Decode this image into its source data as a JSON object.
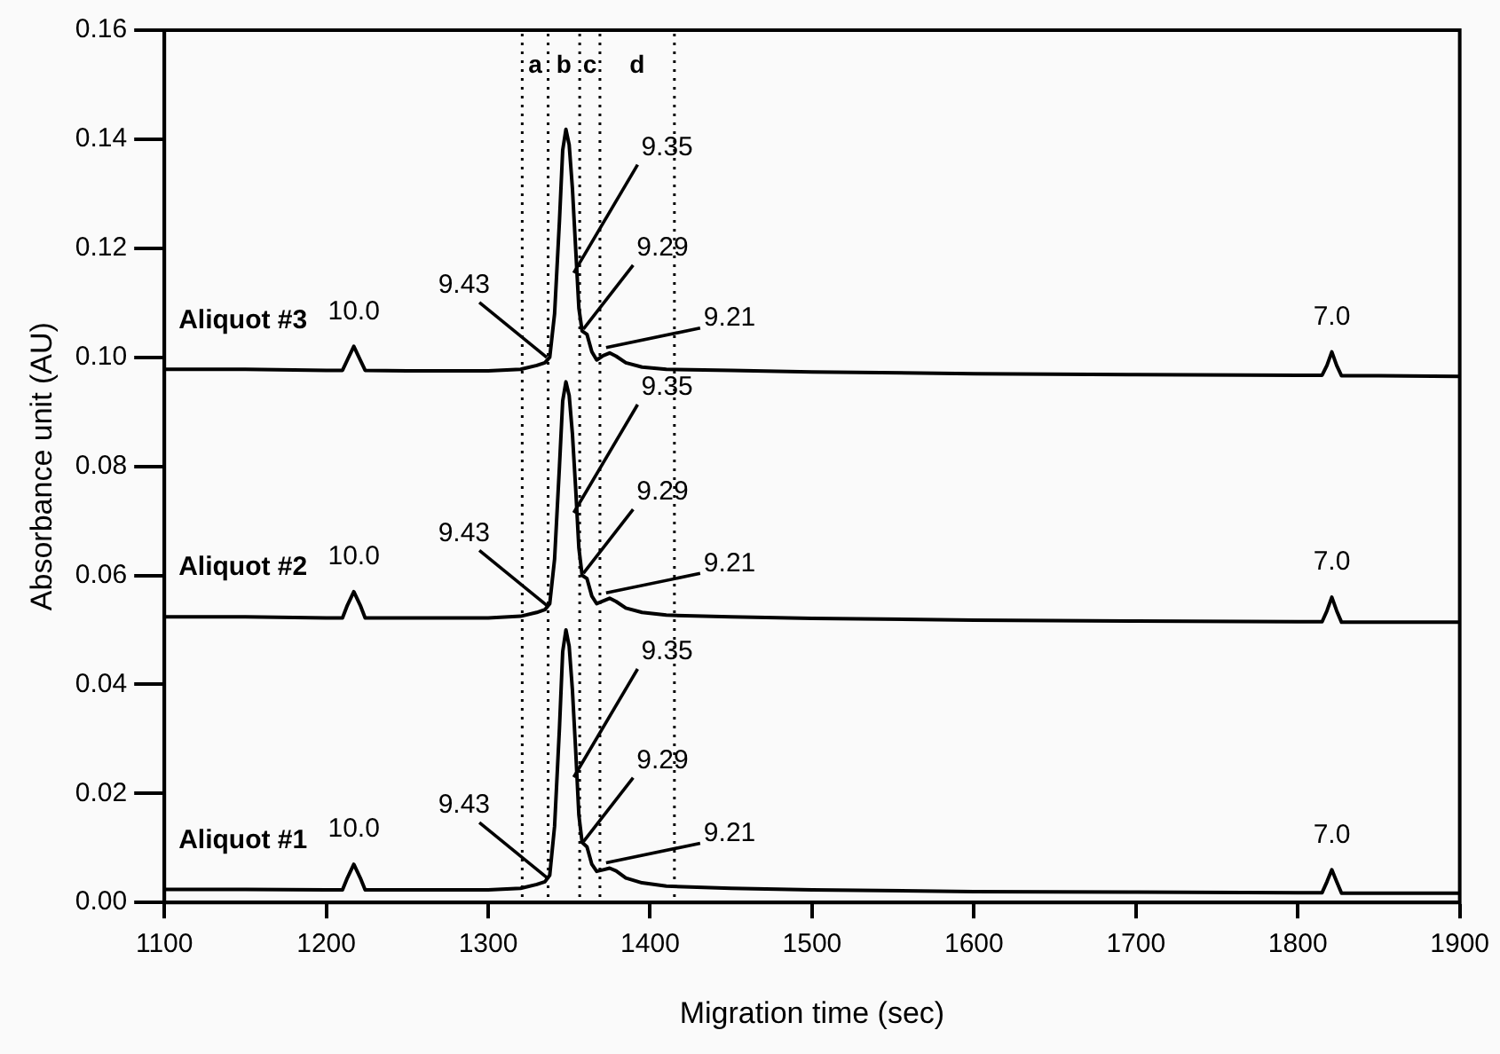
{
  "chart_data": {
    "type": "line",
    "xlabel": "Migration time (sec)",
    "ylabel": "Absorbance unit (AU)",
    "x": [
      1100,
      1150,
      1200,
      1210,
      1213,
      1217,
      1221,
      1224,
      1250,
      1300,
      1320,
      1330,
      1335,
      1338,
      1341,
      1344,
      1346,
      1348,
      1350,
      1352,
      1354,
      1356,
      1358,
      1361,
      1364,
      1367,
      1371,
      1375,
      1379,
      1385,
      1395,
      1410,
      1450,
      1500,
      1600,
      1700,
      1800,
      1815,
      1818,
      1821,
      1824,
      1827,
      1850,
      1900
    ],
    "series": [
      {
        "name": "Aliquot #1",
        "color": "#000000",
        "values": [
          0.0024,
          0.0024,
          0.0023,
          0.0023,
          0.0045,
          0.007,
          0.0045,
          0.0023,
          0.0023,
          0.0023,
          0.0026,
          0.0033,
          0.0038,
          0.005,
          0.014,
          0.032,
          0.046,
          0.05,
          0.047,
          0.039,
          0.028,
          0.016,
          0.011,
          0.0102,
          0.007,
          0.0057,
          0.006,
          0.0063,
          0.0058,
          0.0045,
          0.0036,
          0.003,
          0.0026,
          0.0023,
          0.002,
          0.0019,
          0.0018,
          0.0018,
          0.0038,
          0.006,
          0.0038,
          0.0017,
          0.0017,
          0.0017
        ]
      },
      {
        "name": "Aliquot #2",
        "color": "#000000",
        "values": [
          0.0524,
          0.0524,
          0.0522,
          0.0522,
          0.0545,
          0.057,
          0.0545,
          0.0522,
          0.0522,
          0.0522,
          0.0525,
          0.0532,
          0.0537,
          0.0548,
          0.063,
          0.08,
          0.092,
          0.0955,
          0.093,
          0.086,
          0.076,
          0.065,
          0.06,
          0.0594,
          0.0562,
          0.0548,
          0.0553,
          0.0558,
          0.0552,
          0.054,
          0.0532,
          0.0527,
          0.0524,
          0.0521,
          0.0518,
          0.0516,
          0.0515,
          0.0515,
          0.0535,
          0.056,
          0.0535,
          0.0514,
          0.0514,
          0.0514
        ]
      },
      {
        "name": "Aliquot #3",
        "color": "#000000",
        "values": [
          0.0978,
          0.0978,
          0.0976,
          0.0976,
          0.0995,
          0.102,
          0.0995,
          0.0976,
          0.0975,
          0.0975,
          0.0978,
          0.0985,
          0.099,
          0.1,
          0.108,
          0.125,
          0.138,
          0.1418,
          0.139,
          0.131,
          0.12,
          0.109,
          0.1048,
          0.1042,
          0.101,
          0.0995,
          0.1003,
          0.1008,
          0.1002,
          0.099,
          0.0982,
          0.0978,
          0.0976,
          0.0973,
          0.097,
          0.0968,
          0.0967,
          0.0967,
          0.0985,
          0.101,
          0.0985,
          0.0966,
          0.0966,
          0.0965
        ]
      }
    ],
    "xlim": [
      1100,
      1900
    ],
    "xticks": [
      1100,
      1200,
      1300,
      1400,
      1500,
      1600,
      1700,
      1800,
      1900
    ],
    "ylim": [
      0,
      0.16
    ],
    "yticks": [
      {
        "value": 0,
        "label": "0.00"
      },
      {
        "value": 0.02,
        "label": "0.02"
      },
      {
        "value": 0.04,
        "label": "0.04"
      },
      {
        "value": 0.06,
        "label": "0.06"
      },
      {
        "value": 0.08,
        "label": "0.08"
      },
      {
        "value": 0.1,
        "label": "0.10"
      },
      {
        "value": 0.12,
        "label": "0.12"
      },
      {
        "value": 0.14,
        "label": "0.14"
      },
      {
        "value": 0.16,
        "label": "0.16"
      }
    ],
    "ref_lines": [
      {
        "axis": "x",
        "value": 1321,
        "label": "a",
        "line_style": "dotted"
      },
      {
        "axis": "x",
        "value": 1337,
        "label": "b",
        "line_style": "dotted"
      },
      {
        "axis": "x",
        "value": 1356.5,
        "label": "c",
        "line_style": "dotted"
      },
      {
        "axis": "x",
        "value": 1369,
        "label": "d",
        "line_style": "dotted"
      },
      {
        "axis": "x",
        "value": 1415,
        "line_style": "dotted"
      }
    ],
    "annotations": [
      {
        "text": "10.0",
        "x": 1217,
        "y": 0.007
      },
      {
        "text": "9.43",
        "x": 1334,
        "y": 0.0036
      },
      {
        "text": "9.35",
        "x": 1355,
        "y": 0.022
      },
      {
        "text": "9.29",
        "x": 1361,
        "y": 0.0102
      },
      {
        "text": "9.21",
        "x": 1375,
        "y": 0.0063
      },
      {
        "text": "7.0",
        "x": 1821,
        "y": 0.006
      },
      {
        "text": "10.0",
        "x": 1217,
        "y": 0.057
      },
      {
        "text": "9.43",
        "x": 1334,
        "y": 0.0535
      },
      {
        "text": "9.35",
        "x": 1355,
        "y": 0.0705
      },
      {
        "text": "9.29",
        "x": 1361,
        "y": 0.0594
      },
      {
        "text": "9.21",
        "x": 1375,
        "y": 0.0558
      },
      {
        "text": "7.0",
        "x": 1821,
        "y": 0.056
      },
      {
        "text": "10.0",
        "x": 1217,
        "y": 0.102
      },
      {
        "text": "9.43",
        "x": 1334,
        "y": 0.099
      },
      {
        "text": "9.35",
        "x": 1355,
        "y": 0.1145
      },
      {
        "text": "9.29",
        "x": 1361,
        "y": 0.1042
      },
      {
        "text": "9.21",
        "x": 1375,
        "y": 0.1008
      },
      {
        "text": "7.0",
        "x": 1821,
        "y": 0.101
      }
    ],
    "grid": false,
    "legend": "left",
    "marker": "none",
    "line_style": "solid"
  }
}
